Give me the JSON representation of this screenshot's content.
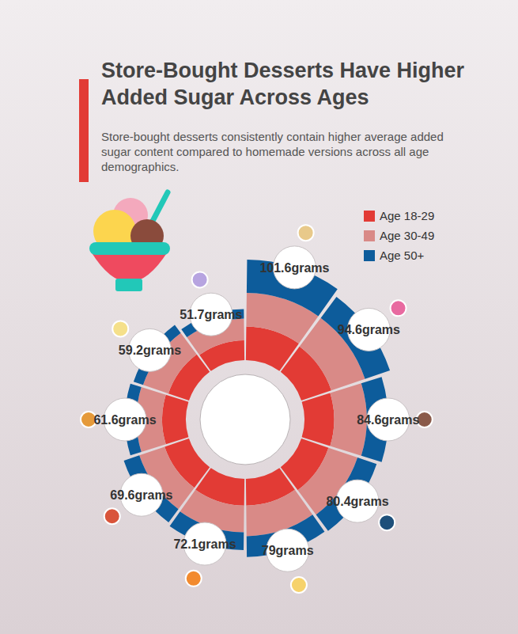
{
  "chart_data": {
    "type": "radial_bar",
    "title": "Store-Bought Desserts Have Higher Added Sugar Across Ages",
    "subtitle": "Store-bought desserts consistently contain higher average added sugar content compared to homemade versions across all age demographics.",
    "categories": [
      null,
      null,
      null,
      null,
      null,
      null,
      null,
      null,
      null,
      null
    ],
    "series": [
      {
        "name": "Age 18-29",
        "color": "#e23b35",
        "values": [
          34,
          32,
          30,
          29,
          27,
          27,
          26,
          24,
          22,
          20
        ]
      },
      {
        "name": "Age 30-49",
        "color": "#d98a87",
        "values": [
          34,
          36,
          33,
          31,
          31,
          27,
          27,
          26,
          27,
          22
        ]
      },
      {
        "name": "Age 50+",
        "color": "#0d5c9b",
        "values": [
          33.6,
          26.6,
          21.6,
          20.4,
          21,
          18.1,
          16.6,
          11.6,
          10.2,
          9.7
        ]
      }
    ],
    "totals": [
      101.6,
      94.6,
      84.6,
      80.4,
      79,
      72.1,
      69.6,
      61.6,
      59.2,
      51.7
    ],
    "total_labels": [
      "101.6grams",
      "94.6grams",
      "84.6grams",
      "80.4grams",
      "79grams",
      "72.1grams",
      "69.6grams",
      "61.6grams",
      "59.2grams",
      "51.7grams"
    ],
    "ylim": [
      0,
      110
    ],
    "stacked": true,
    "legend": "top-right",
    "tick_labels": false
  }
}
